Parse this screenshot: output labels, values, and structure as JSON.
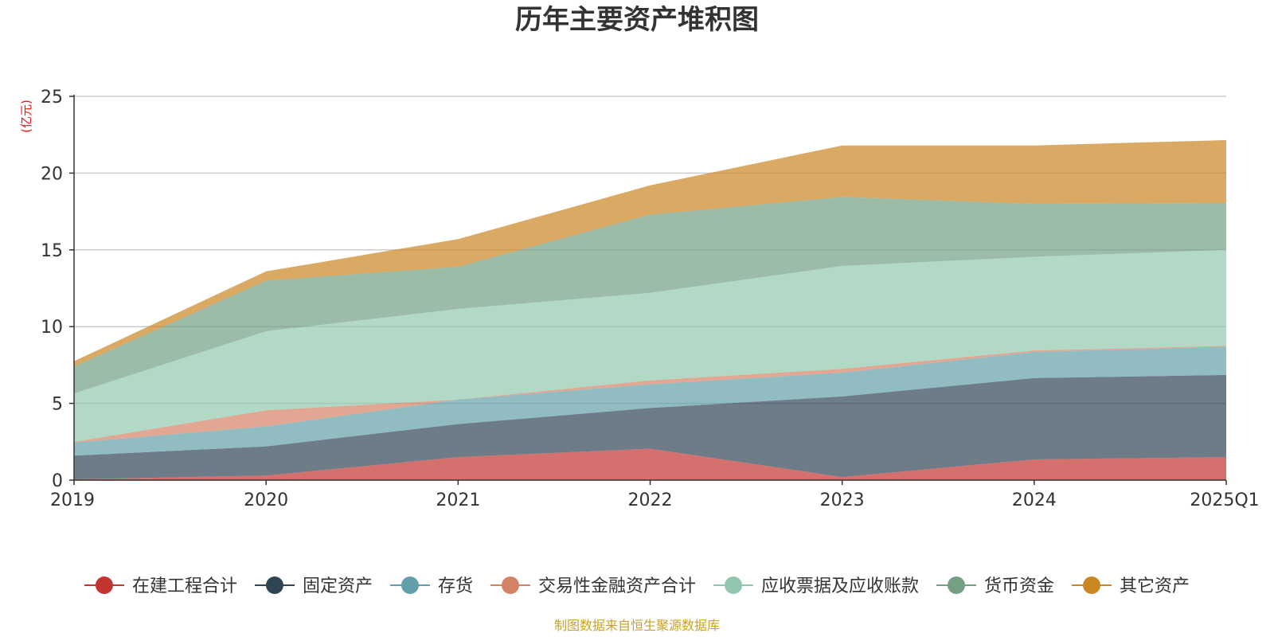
{
  "chart_data": {
    "type": "area",
    "stacked": true,
    "title": "历年主要资产堆积图",
    "unit_label": "(亿元)",
    "x": [
      "2019",
      "2020",
      "2021",
      "2022",
      "2023",
      "2024",
      "2025Q1"
    ],
    "ylim": [
      0,
      25
    ],
    "yticks": [
      "0",
      "5",
      "10",
      "15",
      "20",
      "25"
    ],
    "grid": true,
    "legend_position": "bottom",
    "series": [
      {
        "name": "在建工程合计",
        "color": "#c23531",
        "values": [
          0.05,
          0.3,
          1.5,
          2.05,
          0.2,
          1.35,
          1.5
        ]
      },
      {
        "name": "固定资产",
        "color": "#2f4554",
        "values": [
          1.55,
          1.9,
          2.15,
          2.65,
          5.25,
          5.3,
          5.35
        ]
      },
      {
        "name": "存货",
        "color": "#61a0a8",
        "values": [
          0.85,
          1.3,
          1.6,
          1.55,
          1.55,
          1.7,
          1.85
        ]
      },
      {
        "name": "交易性金融资产合计",
        "color": "#d48265",
        "values": [
          0.05,
          1.05,
          0.0,
          0.25,
          0.25,
          0.1,
          0.05
        ]
      },
      {
        "name": "应收票据及应收账款",
        "color": "#91c7ae",
        "values": [
          3.15,
          5.15,
          5.9,
          5.7,
          6.7,
          6.1,
          6.25
        ]
      },
      {
        "name": "货币资金",
        "color": "#749f83",
        "values": [
          1.75,
          3.3,
          2.75,
          5.1,
          4.5,
          3.45,
          3.05
        ]
      },
      {
        "name": "其它资产",
        "color": "#ca8622",
        "values": [
          0.35,
          0.6,
          1.8,
          1.9,
          3.35,
          3.8,
          4.1
        ]
      }
    ]
  },
  "footer": {
    "source_text": "制图数据来自恒生聚源数据库",
    "source_color": "#c9a227"
  },
  "colors": {
    "unit_label": "#ee1111",
    "axis": "#333333",
    "grid": "#cccccc"
  }
}
